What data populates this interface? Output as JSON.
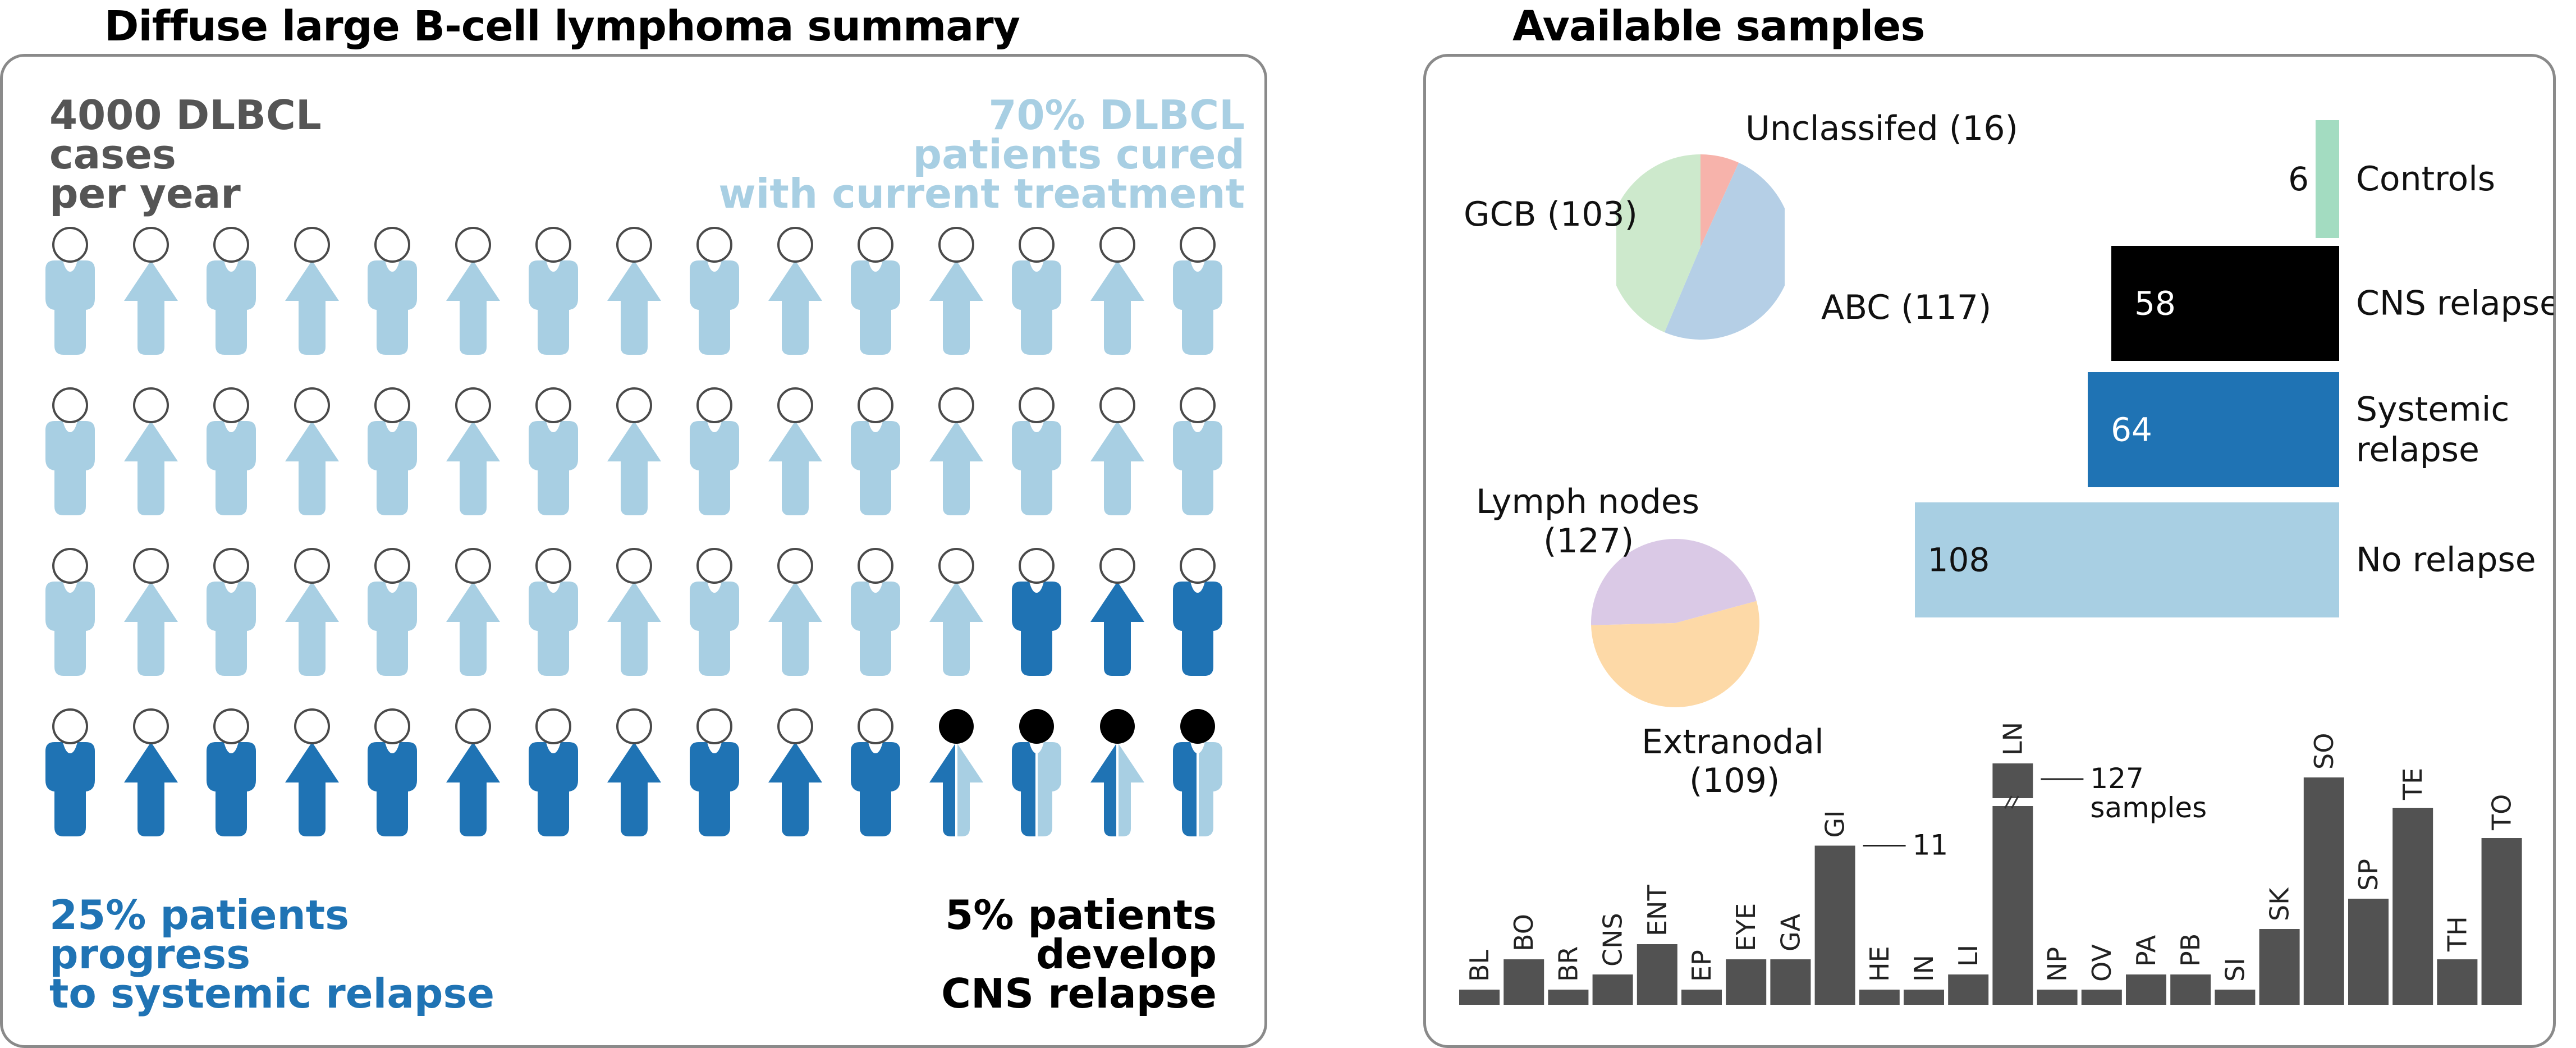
{
  "left": {
    "title": "Diffuse large B-cell lymphoma summary",
    "stats": {
      "cases": [
        "4000 DLBCL",
        "cases",
        "per year"
      ],
      "cured": [
        "70% DLBCL",
        "patients cured",
        "with current treatment"
      ],
      "systemic": [
        "25% patients",
        "progress",
        "to systemic relapse"
      ],
      "cns": [
        "5% patients",
        "develop",
        "CNS relapse"
      ]
    },
    "colors": {
      "cured": "#a8cfe3",
      "systemic": "#1f73b4",
      "cns": "#000000",
      "dark_text": "#555555"
    },
    "icon_grid": {
      "rows": 4,
      "cols": 15,
      "counts": {
        "cured": 42,
        "systemic": 14,
        "cns": 4
      }
    }
  },
  "right": {
    "title": "Available samples",
    "chart_data": [
      {
        "type": "pie",
        "labels": [
          "Unclassifed (16)",
          "ABC (117)",
          "GCB (103)"
        ],
        "values": [
          16,
          117,
          103
        ],
        "colors": [
          "#f7b3ab",
          "#b5cfe6",
          "#cde9cc"
        ]
      },
      {
        "type": "pie",
        "labels": [
          "Extranodal",
          "(109)",
          "Lymph nodes",
          "(127)"
        ],
        "slices": [
          {
            "name": "Lymph nodes",
            "value": 127,
            "color": "#fdd9a7"
          },
          {
            "name": "Extranodal",
            "value": 109,
            "color": "#dac9e6"
          }
        ]
      },
      {
        "type": "bar",
        "orientation": "horizontal",
        "categories": [
          "Controls",
          "CNS relapse",
          "Systemic relapse",
          "No relapse"
        ],
        "category_lines": [
          [
            "Controls"
          ],
          [
            "CNS relapse"
          ],
          [
            "Systemic",
            "relapse"
          ],
          [
            "No relapse"
          ]
        ],
        "values": [
          6,
          58,
          64,
          108
        ],
        "value_labels": [
          "6",
          "58",
          "64",
          "108"
        ],
        "colors": [
          "#a3dcc1",
          "#000000",
          "#1f73b4",
          "#a8cfe3"
        ],
        "label_colors": [
          "#111111",
          "#ffffff",
          "#ffffff",
          "#111111"
        ]
      },
      {
        "type": "bar",
        "categories": [
          "BL",
          "BO",
          "BR",
          "CNS",
          "ENT",
          "EP",
          "EYE",
          "GA",
          "GI",
          "HE",
          "IN",
          "LI",
          "LN",
          "NP",
          "OV",
          "PA",
          "PB",
          "SI",
          "SK",
          "SO",
          "SP",
          "TE",
          "TH",
          "TO"
        ],
        "values": [
          2,
          6,
          2,
          4,
          8,
          2,
          6,
          6,
          21,
          2,
          2,
          4,
          127,
          2,
          2,
          4,
          4,
          2,
          10,
          30,
          14,
          26,
          6,
          22
        ],
        "ylim": [
          0,
          35
        ],
        "broken_axis_bar": "LN",
        "annotations": [
          {
            "category": "GI",
            "text": [
              "11"
            ]
          },
          {
            "category": "LN",
            "text": [
              "127",
              "samples"
            ]
          }
        ],
        "color": "#525252"
      }
    ]
  }
}
